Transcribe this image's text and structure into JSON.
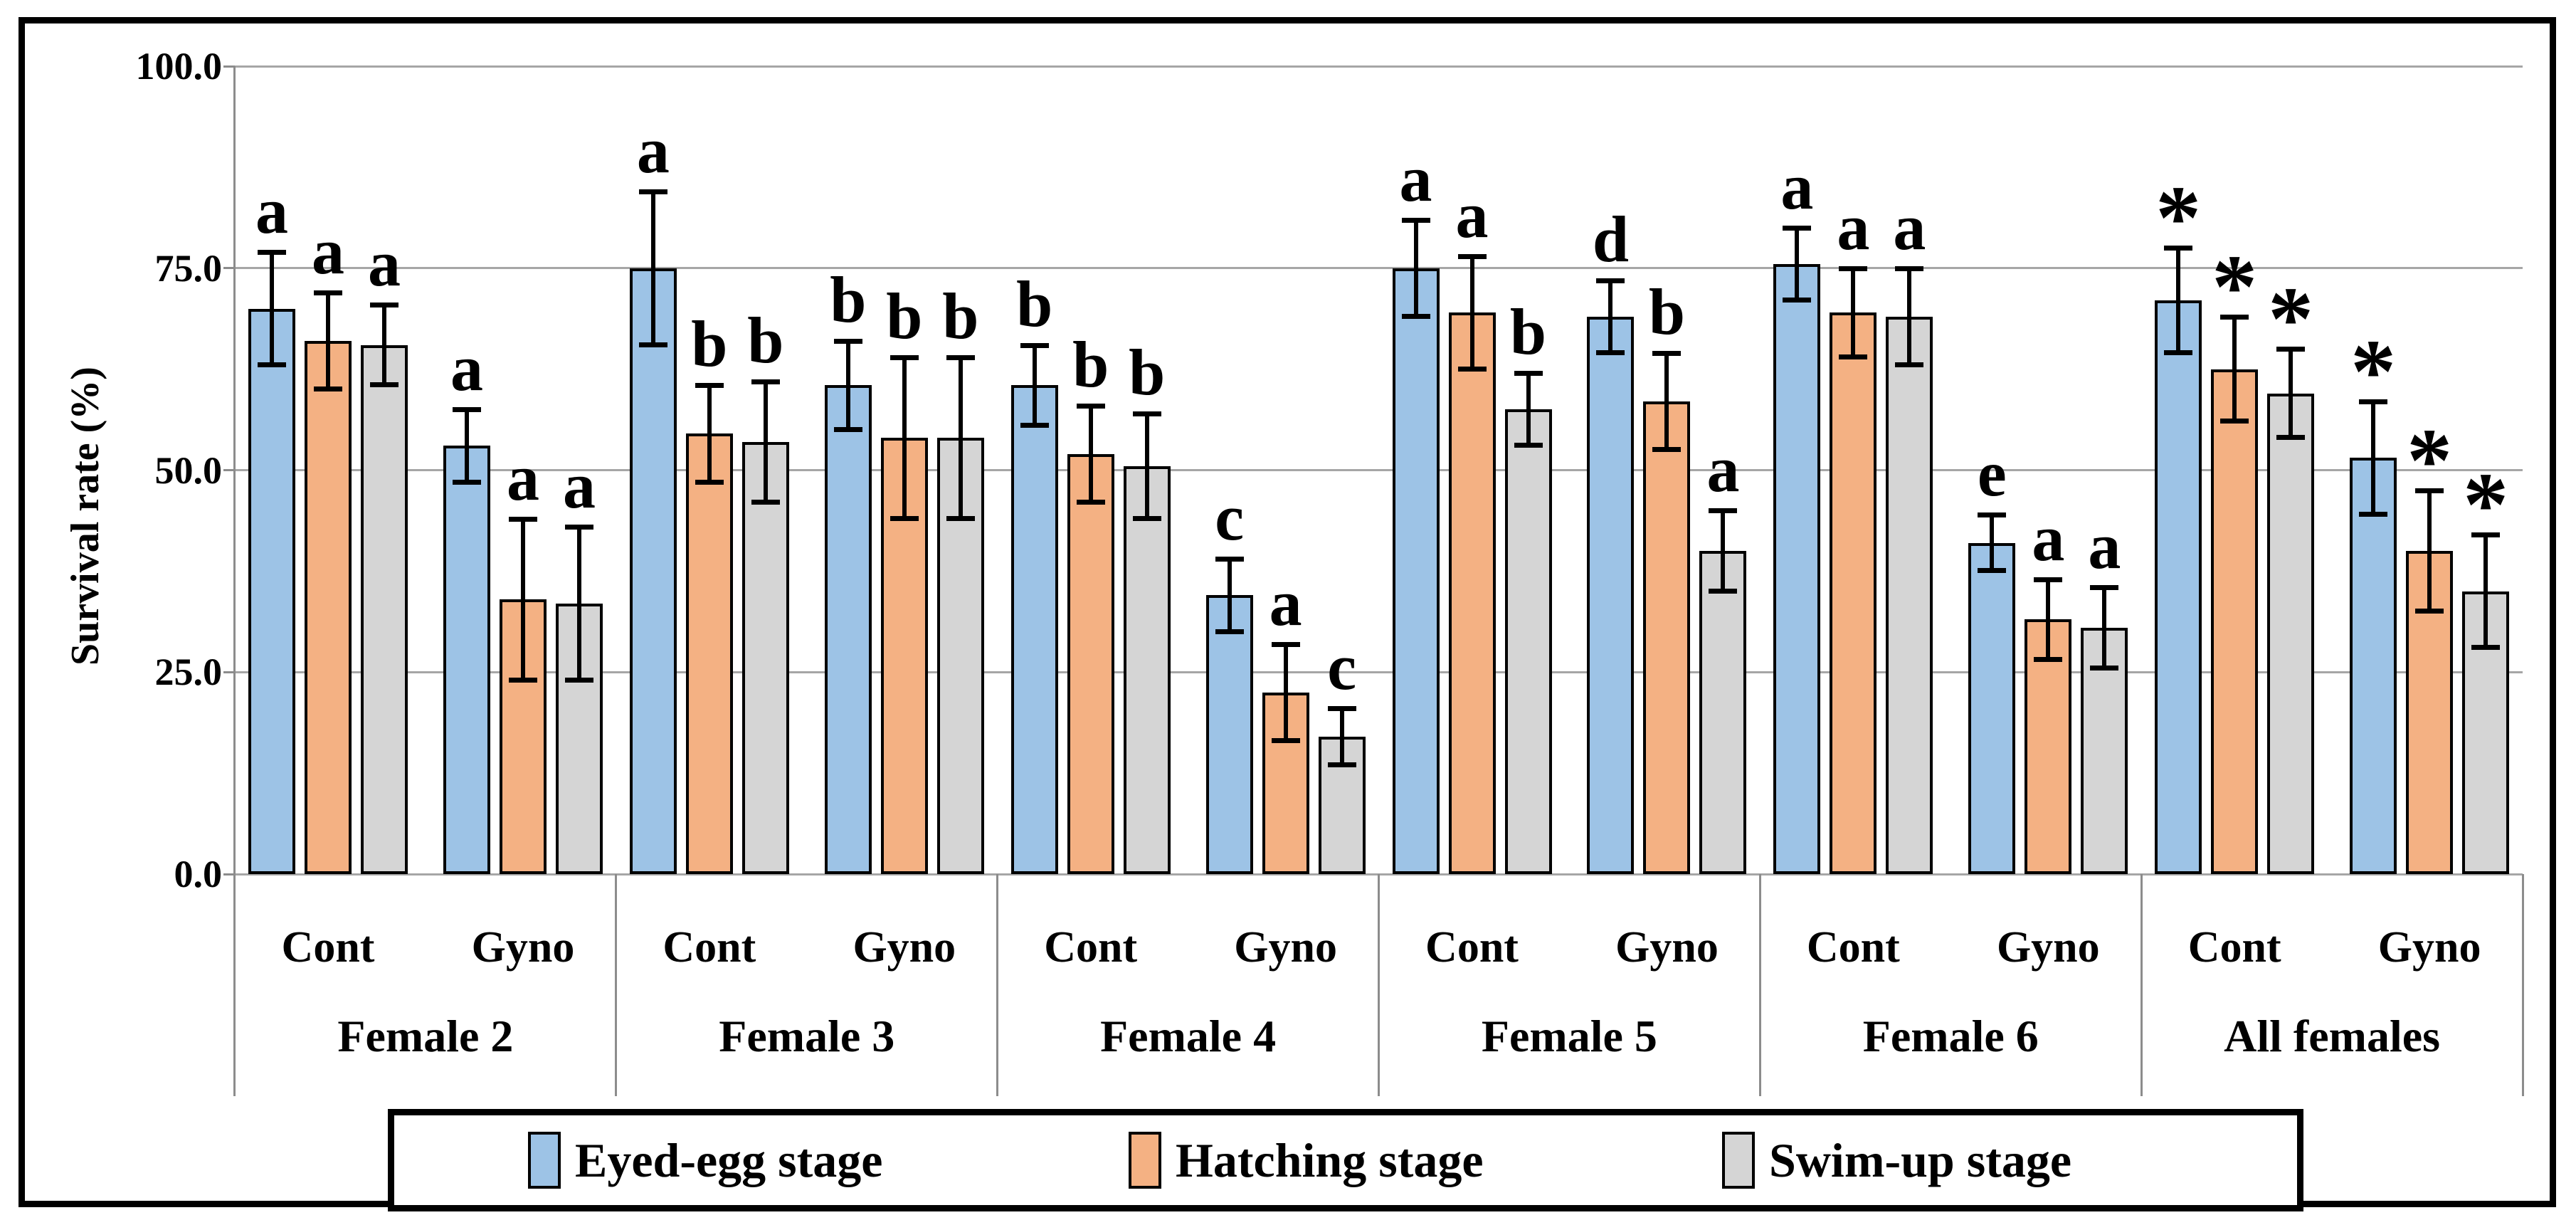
{
  "figure": {
    "y_axis_title": "Survival rate (%)"
  },
  "legend": {
    "items": [
      {
        "label": "Eyed-egg stage",
        "color": "#9DC3E6"
      },
      {
        "label": "Hatching stage",
        "color": "#F4B183"
      },
      {
        "label": "Swim-up stage",
        "color": "#D5D5D5"
      }
    ]
  },
  "chart_data": {
    "type": "bar",
    "title": "",
    "xlabel": "",
    "ylabel": "Survival rate (%)",
    "ylim": [
      0,
      100
    ],
    "yticks": [
      {
        "value": 0,
        "label": "0.0"
      },
      {
        "value": 25,
        "label": "25.0"
      },
      {
        "value": 50,
        "label": "50.0"
      },
      {
        "value": 75,
        "label": "75.0"
      },
      {
        "value": 100,
        "label": "100.0"
      }
    ],
    "grid": "horizontal",
    "legend_position": "bottom",
    "error_bars": true,
    "series": [
      "Eyed-egg stage",
      "Hatching stage",
      "Swim-up stage"
    ],
    "series_colors": [
      "#9DC3E6",
      "#F4B183",
      "#D5D5D5"
    ],
    "annotation_note": "letters a-e and * are significance labels above error bars",
    "groups": [
      {
        "label": "Female 2",
        "conditions": [
          {
            "label": "Cont",
            "values": [
              70,
              66,
              65.5
            ],
            "errors": [
              7,
              6,
              5
            ],
            "sig": [
              "a",
              "a",
              "a"
            ]
          },
          {
            "label": "Gyno",
            "values": [
              53,
              34,
              33.5
            ],
            "errors": [
              4.5,
              10,
              9.5
            ],
            "sig": [
              "a",
              "a",
              "a"
            ]
          }
        ]
      },
      {
        "label": "Female 3",
        "conditions": [
          {
            "label": "Cont",
            "values": [
              75,
              54.5,
              53.5
            ],
            "errors": [
              9.5,
              6,
              7.5
            ],
            "sig": [
              "a",
              "b",
              "b"
            ]
          },
          {
            "label": "Gyno",
            "values": [
              60.5,
              54,
              54
            ],
            "errors": [
              5.5,
              10,
              10
            ],
            "sig": [
              "b",
              "b",
              "b"
            ]
          }
        ]
      },
      {
        "label": "Female 4",
        "conditions": [
          {
            "label": "Cont",
            "values": [
              60.5,
              52,
              50.5
            ],
            "errors": [
              5,
              6,
              6.5
            ],
            "sig": [
              "b",
              "b",
              "b"
            ]
          },
          {
            "label": "Gyno",
            "values": [
              34.5,
              22.5,
              17
            ],
            "errors": [
              4.5,
              6,
              3.5
            ],
            "sig": [
              "c",
              "a",
              "c"
            ]
          }
        ]
      },
      {
        "label": "Female 5",
        "conditions": [
          {
            "label": "Cont",
            "values": [
              75,
              69.5,
              57.5
            ],
            "errors": [
              6,
              7,
              4.5
            ],
            "sig": [
              "a",
              "a",
              "b"
            ]
          },
          {
            "label": "Gyno",
            "values": [
              69,
              58.5,
              40
            ],
            "errors": [
              4.5,
              6,
              5
            ],
            "sig": [
              "d",
              "b",
              "a"
            ]
          }
        ]
      },
      {
        "label": "Female 6",
        "conditions": [
          {
            "label": "Cont",
            "values": [
              75.5,
              69.5,
              69
            ],
            "errors": [
              4.5,
              5.5,
              6
            ],
            "sig": [
              "a",
              "a",
              "a"
            ]
          },
          {
            "label": "Gyno",
            "values": [
              41,
              31.5,
              30.5
            ],
            "errors": [
              3.5,
              5,
              5
            ],
            "sig": [
              "e",
              "a",
              "a"
            ]
          }
        ]
      },
      {
        "label": "All females",
        "conditions": [
          {
            "label": "Cont",
            "values": [
              71,
              62.5,
              59.5
            ],
            "errors": [
              6.5,
              6.5,
              5.5
            ],
            "sig": [
              "*",
              "*",
              "*"
            ]
          },
          {
            "label": "Gyno",
            "values": [
              51.5,
              40,
              35
            ],
            "errors": [
              7,
              7.5,
              7
            ],
            "sig": [
              "*",
              "*",
              "*"
            ]
          }
        ]
      }
    ]
  }
}
